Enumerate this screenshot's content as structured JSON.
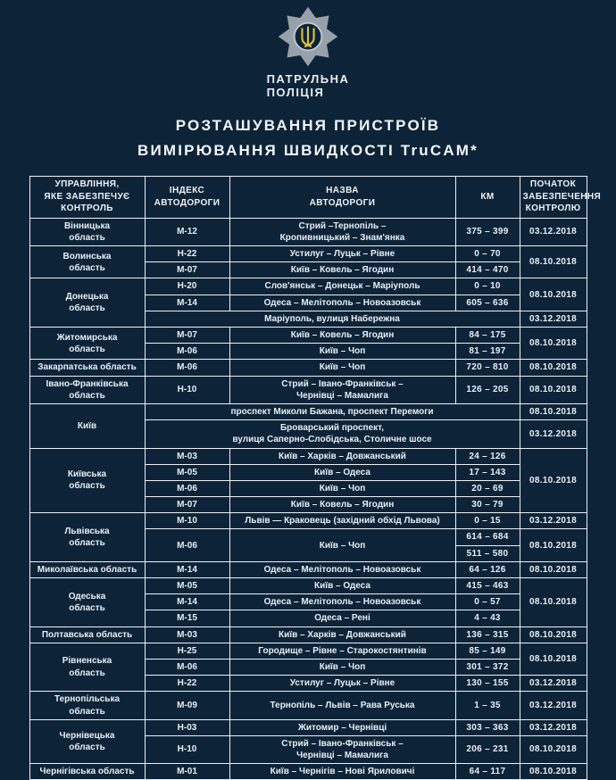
{
  "colors": {
    "background": "#0d2438",
    "border": "#edf1f6",
    "text": "#e9eef4",
    "date_red": "#c1201f",
    "badge_silver": "#97a1ab",
    "trident_yellow": "#dfc23f"
  },
  "header": {
    "logo_icon": "police-star-badge-trident-icon",
    "brand_line1": "ПАТРУЛЬНА",
    "brand_line2": "ПОЛІЦІЯ",
    "title": "РОЗТАШУВАННЯ ПРИСТРОЇВ\nВИМІРЮВАННЯ ШВИДКОСТІ  TruCAM*"
  },
  "table": {
    "header": [
      "УПРАВЛІННЯ,\nЯКЕ ЗАБЕЗПЕЧУЄ\nКОНТРОЛЬ",
      "ІНДЕКС\nАВТОДОРОГИ",
      "НАЗВА\nАВТОДОРОГИ",
      "КМ",
      "ПОЧАТОК\nЗАБЕЗПЕЧЕННЯ\nКОНТРОЛЮ"
    ],
    "rows": [
      [
        {
          "t": "Вінницька\nобласть",
          "n": "region-cell"
        },
        {
          "t": "М-12",
          "n": "road-index-cell"
        },
        {
          "t": "Стрий –Тернопіль –\nКропивницький – Знам'янка",
          "n": "road-name-cell"
        },
        {
          "t": "375 – 399",
          "n": "km-cell"
        },
        {
          "t": "03.12.2018",
          "n": "date-cell",
          "red": true
        }
      ],
      [
        {
          "t": "Волинська\nобласть",
          "n": "region-cell",
          "rs": 2
        },
        {
          "t": "Н-22",
          "n": "road-index-cell"
        },
        {
          "t": "Устилуг – Луцьк – Рівне",
          "n": "road-name-cell"
        },
        {
          "t": "0 – 70",
          "n": "km-cell"
        },
        {
          "t": "08.10.2018",
          "n": "date-cell",
          "rs": 2
        }
      ],
      [
        {
          "t": "М-07",
          "n": "road-index-cell"
        },
        {
          "t": "Київ – Ковель – Ягодин",
          "n": "road-name-cell"
        },
        {
          "t": "414 – 470",
          "n": "km-cell"
        }
      ],
      [
        {
          "t": "Донецька\nобласть",
          "n": "region-cell",
          "rs": 3
        },
        {
          "t": "Н-20",
          "n": "road-index-cell"
        },
        {
          "t": "Слов'янськ – Донецьк – Маріуполь",
          "n": "road-name-cell"
        },
        {
          "t": "0 – 10",
          "n": "km-cell"
        },
        {
          "t": "08.10.2018",
          "n": "date-cell",
          "rs": 2
        }
      ],
      [
        {
          "t": "М-14",
          "n": "road-index-cell"
        },
        {
          "t": "Одеса – Мелітополь – Новоазовськ",
          "n": "road-name-cell"
        },
        {
          "t": "605 – 636",
          "n": "km-cell"
        }
      ],
      [
        {
          "t": "Маріуполь, вулиця Набережна",
          "n": "street-cell",
          "cs": 3
        },
        {
          "t": "03.12.2018",
          "n": "date-cell",
          "red": true
        }
      ],
      [
        {
          "t": "Житомирська\nобласть",
          "n": "region-cell",
          "rs": 2
        },
        {
          "t": "М-07",
          "n": "road-index-cell"
        },
        {
          "t": "Київ – Ковель – Ягодин",
          "n": "road-name-cell"
        },
        {
          "t": "84 – 175",
          "n": "km-cell"
        },
        {
          "t": "08.10.2018",
          "n": "date-cell",
          "rs": 2
        }
      ],
      [
        {
          "t": "М-06",
          "n": "road-index-cell"
        },
        {
          "t": "Київ – Чоп",
          "n": "road-name-cell"
        },
        {
          "t": "81 – 197",
          "n": "km-cell"
        }
      ],
      [
        {
          "t": "Закарпатська область",
          "n": "region-cell"
        },
        {
          "t": "М-06",
          "n": "road-index-cell"
        },
        {
          "t": "Київ – Чоп",
          "n": "road-name-cell"
        },
        {
          "t": "720 – 810",
          "n": "km-cell"
        },
        {
          "t": "08.10.2018",
          "n": "date-cell"
        }
      ],
      [
        {
          "t": "Івано-Франківська\nобласть",
          "n": "region-cell"
        },
        {
          "t": "Н-10",
          "n": "road-index-cell"
        },
        {
          "t": "Стрий – Івано-Франківськ –\nЧернівці – Мамалига",
          "n": "road-name-cell"
        },
        {
          "t": "126 – 205",
          "n": "km-cell"
        },
        {
          "t": "08.10.2018",
          "n": "date-cell"
        }
      ],
      [
        {
          "t": "Київ",
          "n": "region-cell",
          "rs": 2
        },
        {
          "t": "проспект Миколи Бажана, проспект Перемоги",
          "n": "street-cell",
          "cs": 3
        },
        {
          "t": "08.10.2018",
          "n": "date-cell"
        }
      ],
      [
        {
          "t": "Броварський проспект,\nвулиця Саперно-Слобідська, Столичне шосе",
          "n": "street-cell",
          "cs": 3
        },
        {
          "t": "03.12.2018",
          "n": "date-cell",
          "red": true
        }
      ],
      [
        {
          "t": "Київська\nобласть",
          "n": "region-cell",
          "rs": 4
        },
        {
          "t": "М-03",
          "n": "road-index-cell"
        },
        {
          "t": "Київ – Харків – Довжанський",
          "n": "road-name-cell"
        },
        {
          "t": "24 – 126",
          "n": "km-cell"
        },
        {
          "t": "08.10.2018",
          "n": "date-cell",
          "rs": 4
        }
      ],
      [
        {
          "t": "М-05",
          "n": "road-index-cell"
        },
        {
          "t": "Київ – Одеса",
          "n": "road-name-cell"
        },
        {
          "t": "17 – 143",
          "n": "km-cell"
        }
      ],
      [
        {
          "t": "М-06",
          "n": "road-index-cell"
        },
        {
          "t": "Київ – Чоп",
          "n": "road-name-cell"
        },
        {
          "t": "20 – 69",
          "n": "km-cell"
        }
      ],
      [
        {
          "t": "М-07",
          "n": "road-index-cell"
        },
        {
          "t": "Київ – Ковель – Ягодин",
          "n": "road-name-cell"
        },
        {
          "t": "30 – 79",
          "n": "km-cell"
        }
      ],
      [
        {
          "t": "Львівська\nобласть",
          "n": "region-cell",
          "rs": 3
        },
        {
          "t": "М-10",
          "n": "road-index-cell"
        },
        {
          "t": "Львів — Краковець (західний обхід Львова)",
          "n": "road-name-cell"
        },
        {
          "t": "0 – 15",
          "n": "km-cell"
        },
        {
          "t": "03.12.2018",
          "n": "date-cell",
          "red": true
        }
      ],
      [
        {
          "t": "М-06",
          "n": "road-index-cell",
          "rs": 2
        },
        {
          "t": "Київ – Чоп",
          "n": "road-name-cell",
          "rs": 2
        },
        {
          "t": "614 – 684",
          "n": "km-cell"
        },
        {
          "t": "08.10.2018",
          "n": "date-cell",
          "rs": 2
        }
      ],
      [
        {
          "t": "511 – 580",
          "n": "km-cell"
        }
      ],
      [
        {
          "t": "Миколаївська область",
          "n": "region-cell"
        },
        {
          "t": "М-14",
          "n": "road-index-cell"
        },
        {
          "t": "Одеса – Мелітополь – Новоазовськ",
          "n": "road-name-cell"
        },
        {
          "t": "64 – 126",
          "n": "km-cell"
        },
        {
          "t": "08.10.2018",
          "n": "date-cell"
        }
      ],
      [
        {
          "t": "Одеська\nобласть",
          "n": "region-cell",
          "rs": 3
        },
        {
          "t": "М-05",
          "n": "road-index-cell"
        },
        {
          "t": "Київ – Одеса",
          "n": "road-name-cell"
        },
        {
          "t": "415 – 463",
          "n": "km-cell"
        },
        {
          "t": "08.10.2018",
          "n": "date-cell",
          "rs": 3
        }
      ],
      [
        {
          "t": "М-14",
          "n": "road-index-cell"
        },
        {
          "t": "Одеса – Мелітополь – Новоазовськ",
          "n": "road-name-cell"
        },
        {
          "t": "0 – 57",
          "n": "km-cell"
        }
      ],
      [
        {
          "t": "М-15",
          "n": "road-index-cell"
        },
        {
          "t": "Одеса – Рені",
          "n": "road-name-cell"
        },
        {
          "t": "4 – 43",
          "n": "km-cell"
        }
      ],
      [
        {
          "t": "Полтавська область",
          "n": "region-cell"
        },
        {
          "t": "М-03",
          "n": "road-index-cell"
        },
        {
          "t": "Київ – Харків – Довжанський",
          "n": "road-name-cell"
        },
        {
          "t": "136 – 315",
          "n": "km-cell"
        },
        {
          "t": "08.10.2018",
          "n": "date-cell"
        }
      ],
      [
        {
          "t": "Рівненська\nобласть",
          "n": "region-cell",
          "rs": 3
        },
        {
          "t": "Н-25",
          "n": "road-index-cell"
        },
        {
          "t": "Городище – Рівне – Старокостянтинів",
          "n": "road-name-cell"
        },
        {
          "t": "85 – 149",
          "n": "km-cell"
        },
        {
          "t": "08.10.2018",
          "n": "date-cell",
          "rs": 2
        }
      ],
      [
        {
          "t": "М-06",
          "n": "road-index-cell"
        },
        {
          "t": "Київ – Чоп",
          "n": "road-name-cell"
        },
        {
          "t": "301 – 372",
          "n": "km-cell"
        }
      ],
      [
        {
          "t": "Н-22",
          "n": "road-index-cell"
        },
        {
          "t": "Устилуг – Луцьк – Рівне",
          "n": "road-name-cell"
        },
        {
          "t": "130 – 155",
          "n": "km-cell"
        },
        {
          "t": "03.12.2018",
          "n": "date-cell",
          "red": true
        }
      ],
      [
        {
          "t": "Тернопільська\nобласть",
          "n": "region-cell"
        },
        {
          "t": "М-09",
          "n": "road-index-cell"
        },
        {
          "t": "Тернопіль – Львів – Рава Руська",
          "n": "road-name-cell"
        },
        {
          "t": "1 – 35",
          "n": "km-cell"
        },
        {
          "t": "03.12.2018",
          "n": "date-cell",
          "red": true
        }
      ],
      [
        {
          "t": "Чернівецька\nобласть",
          "n": "region-cell",
          "rs": 2
        },
        {
          "t": "Н-03",
          "n": "road-index-cell"
        },
        {
          "t": "Житомир – Чернівці",
          "n": "road-name-cell"
        },
        {
          "t": "303 – 363",
          "n": "km-cell"
        },
        {
          "t": "03.12.2018",
          "n": "date-cell",
          "red": true
        }
      ],
      [
        {
          "t": "Н-10",
          "n": "road-index-cell"
        },
        {
          "t": "Стрий – Івано-Франківськ –\nЧернівці – Мамалига",
          "n": "road-name-cell"
        },
        {
          "t": "206 – 231",
          "n": "km-cell"
        },
        {
          "t": "08.10.2018",
          "n": "date-cell"
        }
      ],
      [
        {
          "t": "Чернігівська область",
          "n": "region-cell"
        },
        {
          "t": "М-01",
          "n": "road-index-cell"
        },
        {
          "t": "Київ – Чернігів – Нові Яриловичі",
          "n": "road-name-cell"
        },
        {
          "t": "64 – 117",
          "n": "km-cell"
        },
        {
          "t": "08.10.2018",
          "n": "date-cell"
        }
      ]
    ]
  }
}
